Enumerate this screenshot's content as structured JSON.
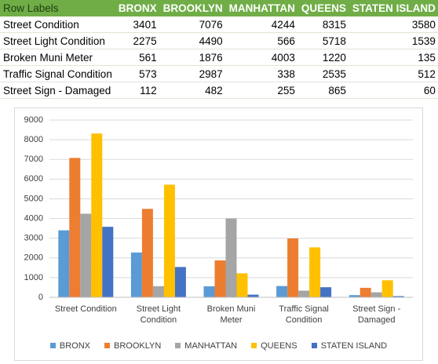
{
  "table": {
    "header": [
      "Row Labels",
      "BRONX",
      "BROOKLYN",
      "MANHATTAN",
      "QUEENS",
      "STATEN ISLAND"
    ],
    "rows": [
      [
        "Street Condition",
        3401,
        7076,
        4244,
        8315,
        3580
      ],
      [
        "Street Light Condition",
        2275,
        4490,
        566,
        5718,
        1539
      ],
      [
        "Broken Muni Meter",
        561,
        1876,
        4003,
        1220,
        135
      ],
      [
        "Traffic Signal Condition",
        573,
        2987,
        338,
        2535,
        512
      ],
      [
        "Street Sign - Damaged",
        112,
        482,
        255,
        865,
        60
      ]
    ]
  },
  "chart_data": {
    "type": "bar",
    "categories": [
      "Street Condition",
      "Street Light Condition",
      "Broken Muni Meter",
      "Traffic Signal Condition",
      "Street Sign - Damaged"
    ],
    "series": [
      {
        "name": "BRONX",
        "color": "#5b9bd5",
        "values": [
          3401,
          2275,
          561,
          573,
          112
        ]
      },
      {
        "name": "BROOKLYN",
        "color": "#ed7d31",
        "values": [
          7076,
          4490,
          1876,
          2987,
          482
        ]
      },
      {
        "name": "MANHATTAN",
        "color": "#a5a5a5",
        "values": [
          4244,
          566,
          4003,
          338,
          255
        ]
      },
      {
        "name": "QUEENS",
        "color": "#ffc000",
        "values": [
          8315,
          5718,
          1220,
          2535,
          865
        ]
      },
      {
        "name": "STATEN ISLAND",
        "color": "#4472c4",
        "values": [
          3580,
          1539,
          135,
          512,
          60
        ]
      }
    ],
    "ylim": [
      0,
      9000
    ],
    "yticks": [
      0,
      1000,
      2000,
      3000,
      4000,
      5000,
      6000,
      7000,
      8000,
      9000
    ],
    "grid": true,
    "legend": "bottom"
  }
}
